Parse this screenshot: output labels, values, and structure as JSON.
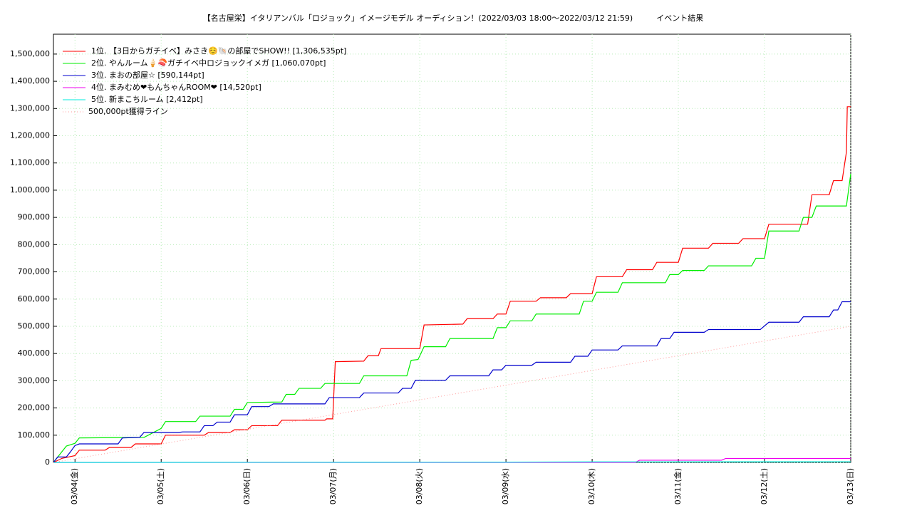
{
  "chart_data": {
    "type": "line",
    "title": "【名古屋栄】イタリアンバル「ロジョック」イメージモデル オーディション！(2022/03/03 18:00〜2022/03/12 21:59)　　　イベント結果",
    "xlim": [
      -0.25,
      9.0
    ],
    "xticks": [
      {
        "value": 0,
        "label": "03/04(金)"
      },
      {
        "value": 1,
        "label": "03/05(土)"
      },
      {
        "value": 2,
        "label": "03/06(日)"
      },
      {
        "value": 3,
        "label": "03/07(月)"
      },
      {
        "value": 4,
        "label": "03/08(火)"
      },
      {
        "value": 5,
        "label": "03/09(水)"
      },
      {
        "value": 6,
        "label": "03/10(木)"
      },
      {
        "value": 7,
        "label": "03/11(金)"
      },
      {
        "value": 8,
        "label": "03/12(土)"
      },
      {
        "value": 9,
        "label": "03/13(日)"
      }
    ],
    "ylim": [
      0,
      1573000
    ],
    "yticks": [
      0,
      {
        "value": 100000,
        "label": "100,000"
      },
      {
        "value": 200000,
        "label": "200,000"
      },
      {
        "value": 300000,
        "label": "300,000"
      },
      {
        "value": 400000,
        "label": "400,000"
      },
      {
        "value": 500000,
        "label": "500,000"
      },
      {
        "value": 600000,
        "label": "600,000"
      },
      {
        "value": 700000,
        "label": "700,000"
      },
      {
        "value": 800000,
        "label": "800,000"
      },
      {
        "value": 900000,
        "label": "900,000"
      },
      {
        "value": 1000000,
        "label": "1,000,000"
      },
      {
        "value": 1100000,
        "label": "1,100,000"
      },
      {
        "value": 1200000,
        "label": "1,200,000"
      },
      {
        "value": 1300000,
        "label": "1,300,000"
      },
      {
        "value": 1400000,
        "label": "1,400,000"
      },
      {
        "value": 1500000,
        "label": "1,500,000"
      }
    ],
    "grid": true,
    "legend": "upper-left",
    "series": [
      {
        "name": "1位. 【3日からガチイベ】みさき☺️🐚の部屋でSHOW!! [1,306,535pt]",
        "color": "#ff0000",
        "style": "solid",
        "x": [
          -0.25,
          -0.15,
          0,
          0.05,
          0.35,
          0.4,
          0.65,
          0.7,
          1.0,
          1.05,
          1.5,
          1.55,
          1.8,
          1.85,
          2.0,
          2.05,
          2.35,
          2.4,
          2.9,
          2.92,
          2.99,
          3.02,
          3.35,
          3.4,
          3.52,
          3.55,
          4.0,
          4.05,
          4.5,
          4.55,
          4.85,
          4.9,
          5.0,
          5.05,
          5.35,
          5.4,
          5.7,
          5.75,
          6.0,
          6.05,
          6.35,
          6.4,
          6.7,
          6.75,
          7.0,
          7.05,
          7.35,
          7.4,
          7.7,
          7.75,
          8.0,
          8.05,
          8.5,
          8.55,
          8.75,
          8.8,
          8.9,
          8.95,
          8.96,
          9.0
        ],
        "values": [
          0,
          15000,
          25000,
          45000,
          45000,
          55000,
          55000,
          68000,
          68000,
          100000,
          100000,
          110000,
          110000,
          120000,
          120000,
          135000,
          135000,
          155000,
          155000,
          160000,
          160000,
          370000,
          372000,
          392000,
          392000,
          418000,
          418000,
          505000,
          508000,
          528000,
          528000,
          545000,
          545000,
          592000,
          592000,
          605000,
          605000,
          620000,
          620000,
          682000,
          682000,
          708000,
          708000,
          735000,
          735000,
          787000,
          787000,
          805000,
          805000,
          822000,
          822000,
          875000,
          875000,
          983000,
          983000,
          1035000,
          1035000,
          1140000,
          1306535,
          1306535
        ]
      },
      {
        "name": "2位. やんルーム🍦🍣ガチイベ中ロジョックイメガ [1,060,070pt]",
        "color": "#00ee00",
        "style": "solid",
        "x": [
          -0.25,
          -0.1,
          0.0,
          0.05,
          0.8,
          0.85,
          1.0,
          1.05,
          1.4,
          1.45,
          1.8,
          1.85,
          1.95,
          2.0,
          2.4,
          2.45,
          2.55,
          2.6,
          2.85,
          2.9,
          3.3,
          3.35,
          3.85,
          3.9,
          3.98,
          4.05,
          4.3,
          4.35,
          4.85,
          4.9,
          5.0,
          5.05,
          5.3,
          5.35,
          5.85,
          5.9,
          6.0,
          6.05,
          6.3,
          6.35,
          6.85,
          6.9,
          7.0,
          7.05,
          7.3,
          7.35,
          7.85,
          7.9,
          8.0,
          8.05,
          8.4,
          8.45,
          8.55,
          8.6,
          8.95,
          9.0
        ],
        "values": [
          0,
          60000,
          70000,
          90000,
          92000,
          100000,
          125000,
          150000,
          150000,
          170000,
          170000,
          195000,
          195000,
          220000,
          222000,
          250000,
          250000,
          272000,
          272000,
          290000,
          290000,
          318000,
          318000,
          375000,
          378000,
          425000,
          425000,
          455000,
          455000,
          495000,
          495000,
          520000,
          520000,
          545000,
          545000,
          592000,
          592000,
          625000,
          625000,
          660000,
          660000,
          690000,
          690000,
          705000,
          705000,
          722000,
          722000,
          750000,
          750000,
          850000,
          850000,
          900000,
          900000,
          942000,
          942000,
          1060070
        ]
      },
      {
        "name": "3位. まおの部屋☆ [590,144pt]",
        "color": "#0000cc",
        "style": "solid",
        "x": [
          -0.25,
          -0.2,
          -0.1,
          -0.05,
          0.0,
          0.05,
          0.5,
          0.55,
          0.75,
          0.8,
          1.2,
          1.25,
          1.45,
          1.5,
          1.6,
          1.65,
          1.8,
          1.85,
          2.0,
          2.05,
          2.25,
          2.3,
          2.9,
          2.95,
          3.3,
          3.35,
          3.75,
          3.8,
          3.9,
          3.95,
          4.3,
          4.35,
          4.8,
          4.85,
          4.95,
          5.0,
          5.3,
          5.35,
          5.75,
          5.8,
          5.95,
          6.0,
          6.3,
          6.35,
          6.75,
          6.8,
          6.9,
          6.95,
          7.3,
          7.35,
          7.95,
          8.05,
          8.4,
          8.45,
          8.75,
          8.8,
          8.85,
          8.9,
          9.0
        ],
        "values": [
          0,
          20000,
          20000,
          40000,
          62000,
          68000,
          68000,
          90000,
          92000,
          110000,
          110000,
          112000,
          112000,
          135000,
          135000,
          148000,
          148000,
          175000,
          175000,
          205000,
          205000,
          215000,
          215000,
          238000,
          238000,
          255000,
          255000,
          272000,
          272000,
          302000,
          302000,
          318000,
          318000,
          340000,
          340000,
          357000,
          357000,
          368000,
          368000,
          390000,
          390000,
          413000,
          413000,
          428000,
          428000,
          455000,
          455000,
          478000,
          478000,
          488000,
          488000,
          515000,
          515000,
          535000,
          535000,
          560000,
          560000,
          590144,
          590144
        ]
      },
      {
        "name": "4位. まみむめ❤もんちゃんROOM❤ [14,520pt]",
        "color": "#ee00ee",
        "style": "solid",
        "x": [
          -0.25,
          6.5,
          6.55,
          7.5,
          7.55,
          9.0
        ],
        "values": [
          0,
          0,
          8000,
          8000,
          14520,
          14520
        ]
      },
      {
        "name": "5位. 新まこちルーム [2,412pt]",
        "color": "#00eedd",
        "style": "solid",
        "x": [
          -0.25,
          5.0,
          6.0,
          9.0
        ],
        "values": [
          0,
          1000,
          2000,
          2412
        ]
      },
      {
        "name": "500,000pt獲得ライン",
        "color": "#ff9999",
        "style": "dotted",
        "x": [
          -0.25,
          9.0
        ],
        "values": [
          0,
          500000
        ]
      }
    ]
  }
}
